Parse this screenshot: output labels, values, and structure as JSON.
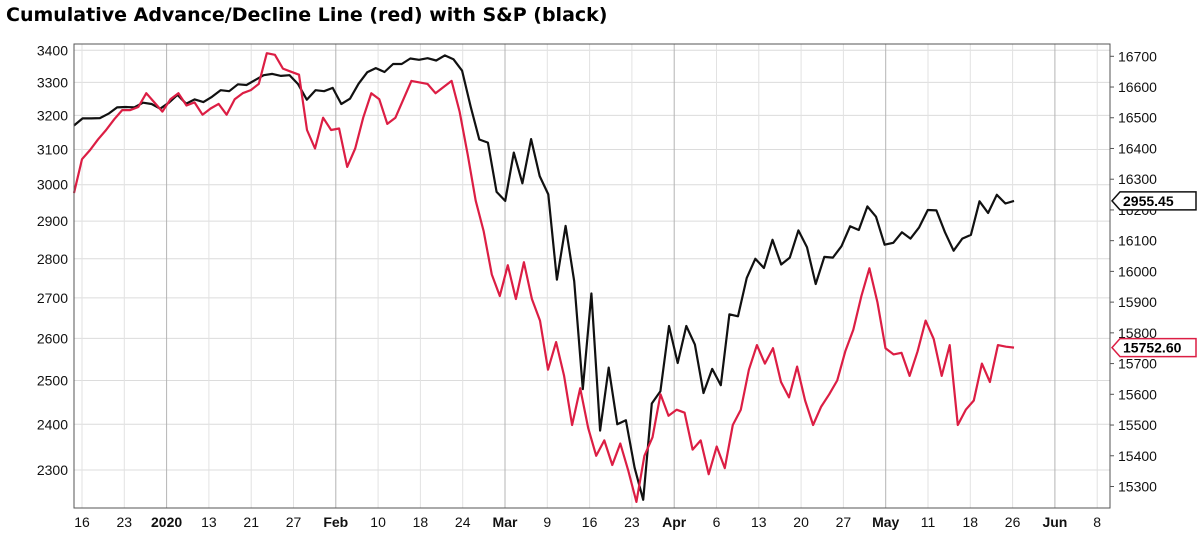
{
  "chart_data": {
    "type": "line",
    "title": "Cumulative Advance/Decline Line (red) with S&P (black)",
    "x_tick_labels": [
      "16",
      "23",
      "2020",
      "13",
      "21",
      "27",
      "Feb",
      "10",
      "18",
      "24",
      "Mar",
      "9",
      "16",
      "23",
      "Apr",
      "6",
      "13",
      "20",
      "27",
      "May",
      "11",
      "18",
      "26",
      "Jun",
      "8"
    ],
    "bold_ticks": [
      "2020",
      "Feb",
      "Mar",
      "Apr",
      "May",
      "Jun"
    ],
    "y_left": {
      "ticks": [
        2300,
        2400,
        2500,
        2600,
        2700,
        2800,
        2900,
        3000,
        3100,
        3200,
        3300,
        3400
      ],
      "range": [
        2220,
        3420
      ],
      "scale": "log"
    },
    "y_right": {
      "ticks": [
        15300,
        15400,
        15500,
        15600,
        15700,
        15800,
        15900,
        16000,
        16100,
        16200,
        16300,
        16400,
        16500,
        16600,
        16700
      ],
      "range": [
        15230,
        16740
      ]
    },
    "grid": true,
    "series": [
      {
        "name": "S&P",
        "axis": "left",
        "color": "#111111",
        "last_label": "2955.45",
        "values": [
          3170,
          3191,
          3191,
          3192,
          3205,
          3224,
          3225,
          3224,
          3238,
          3234,
          3220,
          3238,
          3262,
          3235,
          3248,
          3240,
          3256,
          3276,
          3273,
          3294,
          3292,
          3307,
          3322,
          3326,
          3320,
          3322,
          3294,
          3247,
          3276,
          3273,
          3283,
          3234,
          3250,
          3296,
          3331,
          3344,
          3332,
          3357,
          3357,
          3374,
          3370,
          3375,
          3368,
          3384,
          3372,
          3336,
          3226,
          3129,
          3120,
          2980,
          2955,
          3091,
          3004,
          3130,
          3024,
          2973,
          2746,
          2887,
          2742,
          2480,
          2711,
          2386,
          2530,
          2400,
          2409,
          2305,
          2237,
          2447,
          2475,
          2630,
          2541,
          2630,
          2585,
          2471,
          2527,
          2489,
          2659,
          2654,
          2750,
          2800,
          2776,
          2850,
          2785,
          2803,
          2875,
          2830,
          2735,
          2805,
          2803,
          2833,
          2886,
          2876,
          2940,
          2912,
          2837,
          2842,
          2870,
          2853,
          2883,
          2930,
          2929,
          2870,
          2821,
          2853,
          2863,
          2954,
          2922,
          2972,
          2948,
          2955
        ]
      },
      {
        "name": "Cumulative Advance/Decline Line",
        "axis": "right",
        "color": "#dc1e44",
        "last_label": "15752.60",
        "values": [
          16255,
          16365,
          16395,
          16430,
          16460,
          16495,
          16525,
          16525,
          16535,
          16580,
          16550,
          16520,
          16560,
          16580,
          16540,
          16550,
          16510,
          16530,
          16545,
          16510,
          16560,
          16580,
          16590,
          16610,
          16710,
          16705,
          16660,
          16650,
          16640,
          16460,
          16400,
          16500,
          16460,
          16465,
          16340,
          16400,
          16500,
          16580,
          16560,
          16480,
          16500,
          16560,
          16620,
          16615,
          16610,
          16580,
          16600,
          16620,
          16520,
          16380,
          16230,
          16130,
          15990,
          15920,
          16020,
          15910,
          16030,
          15910,
          15840,
          15680,
          15770,
          15660,
          15500,
          15620,
          15490,
          15400,
          15450,
          15370,
          15440,
          15350,
          15250,
          15400,
          15460,
          15600,
          15530,
          15550,
          15540,
          15420,
          15450,
          15340,
          15430,
          15360,
          15500,
          15550,
          15680,
          15760,
          15700,
          15750,
          15640,
          15590,
          15690,
          15580,
          15500,
          15560,
          15600,
          15645,
          15740,
          15810,
          15920,
          16010,
          15900,
          15750,
          15730,
          15735,
          15660,
          15740,
          15840,
          15780,
          15660,
          15760,
          15500,
          15550,
          15580,
          15700,
          15640,
          15760,
          15755,
          15752
        ]
      }
    ]
  }
}
